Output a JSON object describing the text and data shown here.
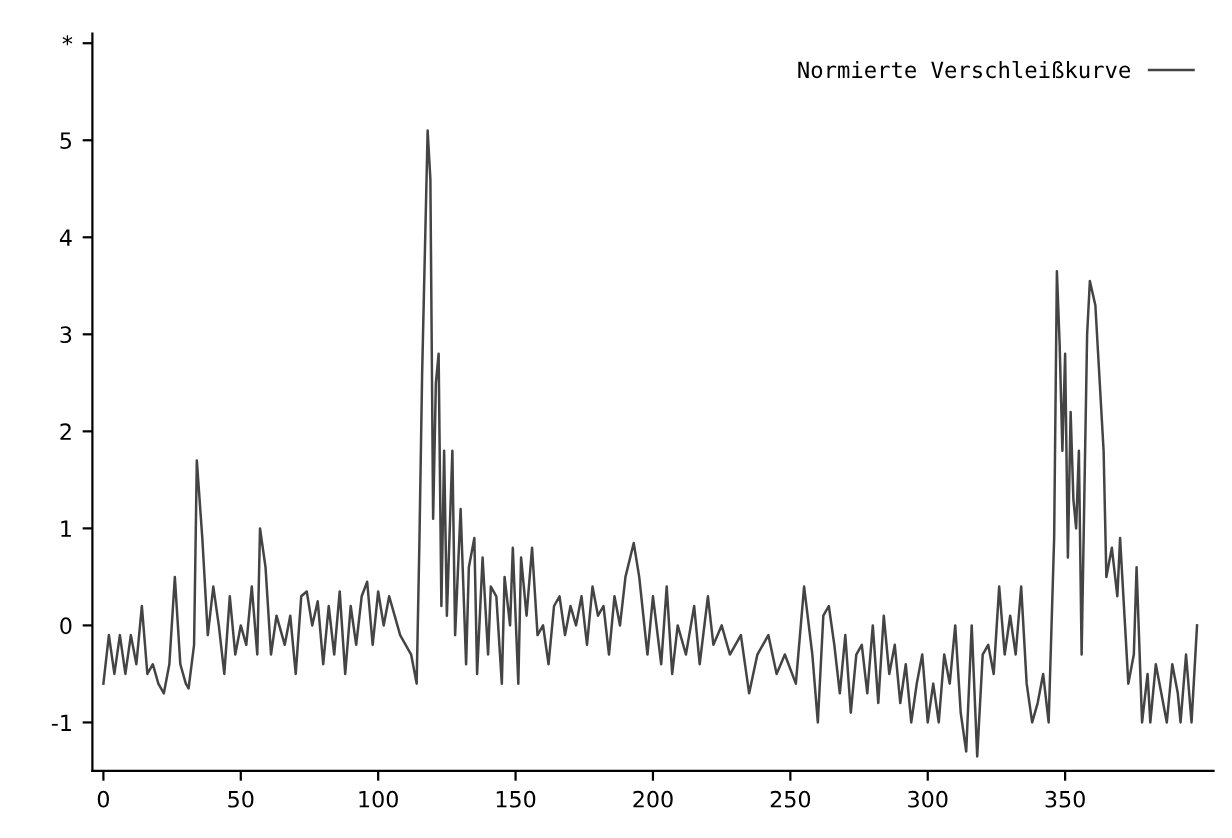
{
  "chart_data": {
    "type": "line",
    "xlim": [
      -4,
      404
    ],
    "ylim": [
      -1.5,
      6.1
    ],
    "xticks": [
      0,
      50,
      100,
      150,
      200,
      250,
      300,
      350
    ],
    "yticks": [
      -1,
      0,
      1,
      2,
      3,
      4,
      5,
      {
        "value": 6,
        "label": "*"
      }
    ],
    "grid": false,
    "legend": "top right",
    "marker": "none",
    "line_style": "solid",
    "series": [
      {
        "name": "Normierte Verschleißkurve",
        "color": "#444444",
        "x": [
          0,
          2,
          4,
          6,
          8,
          10,
          12,
          14,
          16,
          18,
          20,
          22,
          24,
          26,
          28,
          30,
          31,
          33,
          34,
          36,
          38,
          40,
          42,
          44,
          46,
          48,
          50,
          52,
          54,
          56,
          57,
          59,
          61,
          63,
          66,
          68,
          70,
          72,
          74,
          76,
          78,
          80,
          82,
          84,
          86,
          88,
          90,
          92,
          94,
          96,
          98,
          100,
          102,
          104,
          106,
          108,
          110,
          112,
          114,
          115,
          116,
          118,
          119,
          120,
          121,
          122,
          123,
          124,
          125,
          127,
          128,
          130,
          132,
          133,
          135,
          136,
          138,
          140,
          141,
          143,
          145,
          146,
          148,
          149,
          151,
          152,
          154,
          156,
          158,
          160,
          162,
          164,
          166,
          168,
          170,
          172,
          174,
          176,
          178,
          180,
          182,
          184,
          186,
          188,
          190,
          193,
          195,
          198,
          200,
          203,
          205,
          207,
          209,
          212,
          215,
          217,
          220,
          222,
          225,
          228,
          232,
          235,
          238,
          242,
          245,
          248,
          252,
          255,
          258,
          260,
          262,
          264,
          266,
          268,
          270,
          272,
          274,
          276,
          278,
          280,
          282,
          284,
          286,
          288,
          290,
          292,
          294,
          296,
          298,
          300,
          302,
          304,
          306,
          308,
          310,
          312,
          314,
          316,
          318,
          320,
          322,
          324,
          326,
          328,
          330,
          332,
          334,
          336,
          338,
          340,
          342,
          344,
          346,
          347,
          348,
          349,
          350,
          351,
          352,
          353,
          354,
          355,
          356,
          358,
          359,
          361,
          362,
          364,
          365,
          367,
          369,
          370,
          372,
          373,
          375,
          376,
          378,
          380,
          381,
          383,
          385,
          387,
          389,
          391,
          392,
          394,
          396,
          398
        ],
        "values": [
          -0.6,
          -0.1,
          -0.5,
          -0.1,
          -0.5,
          -0.1,
          -0.4,
          0.2,
          -0.5,
          -0.4,
          -0.6,
          -0.7,
          -0.4,
          0.5,
          -0.4,
          -0.6,
          -0.65,
          -0.2,
          1.7,
          0.9,
          -0.1,
          0.4,
          0.0,
          -0.5,
          0.3,
          -0.3,
          0.0,
          -0.2,
          0.4,
          -0.3,
          1.0,
          0.6,
          -0.3,
          0.1,
          -0.2,
          0.1,
          -0.5,
          0.3,
          0.35,
          0.0,
          0.25,
          -0.4,
          0.2,
          -0.3,
          0.35,
          -0.5,
          0.2,
          -0.2,
          0.3,
          0.45,
          -0.2,
          0.35,
          0.0,
          0.3,
          0.1,
          -0.1,
          -0.2,
          -0.3,
          -0.6,
          0.85,
          2.6,
          5.1,
          4.6,
          1.1,
          2.5,
          2.8,
          0.2,
          1.8,
          0.1,
          1.8,
          -0.1,
          1.2,
          -0.4,
          0.6,
          0.9,
          -0.5,
          0.7,
          -0.3,
          0.4,
          0.3,
          -0.6,
          0.5,
          0.0,
          0.8,
          -0.6,
          0.7,
          0.1,
          0.8,
          -0.1,
          0.0,
          -0.4,
          0.2,
          0.3,
          -0.1,
          0.2,
          0.0,
          0.3,
          -0.2,
          0.4,
          0.1,
          0.2,
          -0.3,
          0.3,
          0.0,
          0.5,
          0.85,
          0.5,
          -0.3,
          0.3,
          -0.4,
          0.4,
          -0.5,
          0.0,
          -0.3,
          0.2,
          -0.4,
          0.3,
          -0.2,
          0.0,
          -0.3,
          -0.1,
          -0.7,
          -0.3,
          -0.1,
          -0.5,
          -0.3,
          -0.6,
          0.4,
          -0.3,
          -1.0,
          0.1,
          0.2,
          -0.2,
          -0.7,
          -0.1,
          -0.9,
          -0.3,
          -0.2,
          -0.7,
          0.0,
          -0.8,
          0.1,
          -0.5,
          -0.2,
          -0.8,
          -0.4,
          -1.0,
          -0.6,
          -0.3,
          -1.0,
          -0.6,
          -1.0,
          -0.3,
          -0.6,
          0.0,
          -0.9,
          -1.3,
          0.0,
          -1.35,
          -0.3,
          -0.2,
          -0.5,
          0.4,
          -0.3,
          0.1,
          -0.3,
          0.4,
          -0.6,
          -1.0,
          -0.8,
          -0.5,
          -1.0,
          0.9,
          3.65,
          2.9,
          1.8,
          2.8,
          0.7,
          2.2,
          1.3,
          1.0,
          1.8,
          -0.3,
          3.0,
          3.55,
          3.3,
          2.8,
          1.8,
          0.5,
          0.8,
          0.3,
          0.9,
          -0.1,
          -0.6,
          -0.3,
          0.6,
          -1.0,
          -0.5,
          -1.0,
          -0.4,
          -0.7,
          -1.0,
          -0.4,
          -0.7,
          -1.0,
          -0.3,
          -1.0,
          0.0
        ]
      }
    ]
  }
}
